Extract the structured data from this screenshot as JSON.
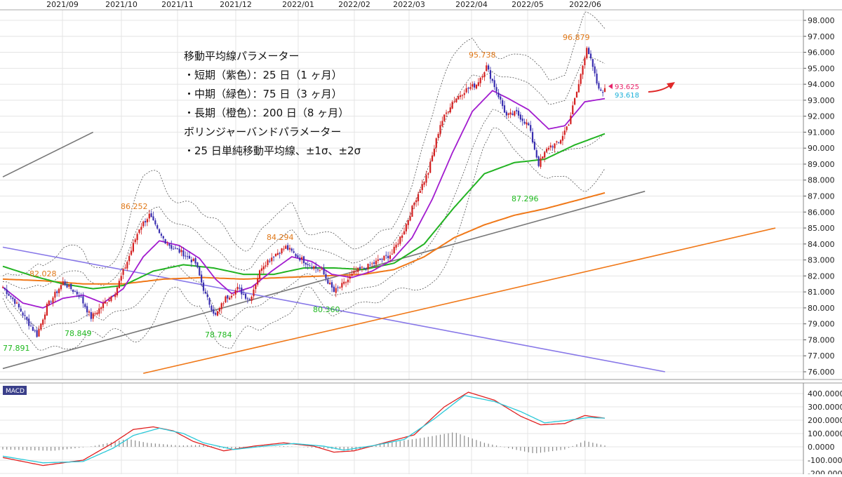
{
  "chart_data": [
    {
      "type": "candlestick",
      "title": "",
      "x_ticks": [
        "2021/09",
        "2021/10",
        "2021/11",
        "2021/12",
        "2022/01",
        "2022/02",
        "2022/03",
        "2022/04",
        "2022/05",
        "2022/06"
      ],
      "y_ticks": [
        "98.000",
        "97.000",
        "96.000",
        "95.000",
        "94.000",
        "93.000",
        "92.000",
        "91.000",
        "90.000",
        "89.000",
        "88.000",
        "87.000",
        "86.000",
        "85.000",
        "84.000",
        "83.000",
        "82.000",
        "81.000",
        "80.000",
        "79.000",
        "78.000",
        "77.000",
        "76.000"
      ],
      "ylim": [
        75.8,
        98.3
      ],
      "grid": true,
      "annotation_lines": [
        "移動平均線パラメーター",
        "・短期（紫色）：25 日（1 ヶ月）",
        "・中期（緑色）：75 日（3 ヶ月）",
        "・長期（橙色）：200 日（8 ヶ月）",
        "ボリンジャーバンドパラメーター",
        "・25 日単純移動平均線、±1σ、±2σ"
      ],
      "high_labels": [
        "82.028",
        "86.252",
        "84.294",
        "95.738",
        "96.879"
      ],
      "low_labels": [
        "77.891",
        "78.849",
        "78.784",
        "80.360",
        "87.296"
      ],
      "price_tags": [
        "93.625",
        "93.618"
      ],
      "colors": {
        "up": "#d42020",
        "down": "#3a2fb0",
        "ma25": "#a21ccf",
        "ma75": "#22b322",
        "ma200": "#f07818",
        "bands": "#555555",
        "high_label": "#e07818",
        "low_label": "#1fb81f",
        "tag_pink": "#e8246a",
        "tag_cyan": "#1ab0d8",
        "trend_black": "#777777",
        "trend_purple": "#8878e8",
        "trend_orange": "#f07818",
        "arrow": "#e02828"
      },
      "anchor_closes": [
        [
          0,
          81.3
        ],
        [
          6,
          80.4
        ],
        [
          12,
          79.2
        ],
        [
          17,
          78.3
        ],
        [
          22,
          80.1
        ],
        [
          30,
          81.6
        ],
        [
          38,
          80.8
        ],
        [
          44,
          79.4
        ],
        [
          50,
          80.2
        ],
        [
          56,
          81.0
        ],
        [
          62,
          82.9
        ],
        [
          68,
          85.0
        ],
        [
          73,
          85.8
        ],
        [
          78,
          84.6
        ],
        [
          84,
          83.8
        ],
        [
          90,
          83.4
        ],
        [
          96,
          82.8
        ],
        [
          101,
          80.8
        ],
        [
          106,
          79.5
        ],
        [
          111,
          80.6
        ],
        [
          117,
          81.2
        ],
        [
          123,
          80.5
        ],
        [
          129,
          82.6
        ],
        [
          135,
          83.3
        ],
        [
          141,
          83.8
        ],
        [
          147,
          83.2
        ],
        [
          153,
          82.7
        ],
        [
          159,
          82.3
        ],
        [
          165,
          81.0
        ],
        [
          170,
          81.5
        ],
        [
          176,
          82.3
        ],
        [
          182,
          82.6
        ],
        [
          188,
          83.0
        ],
        [
          194,
          83.4
        ],
        [
          200,
          84.9
        ],
        [
          206,
          86.9
        ],
        [
          212,
          88.5
        ],
        [
          218,
          91.5
        ],
        [
          224,
          92.9
        ],
        [
          230,
          93.6
        ],
        [
          236,
          94.0
        ],
        [
          241,
          95.1
        ],
        [
          246,
          93.6
        ],
        [
          251,
          92.0
        ],
        [
          256,
          92.2
        ],
        [
          262,
          91.4
        ],
        [
          267,
          89.0
        ],
        [
          272,
          90.1
        ],
        [
          277,
          90.3
        ],
        [
          282,
          91.6
        ],
        [
          287,
          94.0
        ],
        [
          291,
          96.4
        ],
        [
          294,
          95.0
        ],
        [
          297,
          93.6
        ],
        [
          300,
          93.62
        ]
      ],
      "ma25_values": [
        [
          0,
          81.3
        ],
        [
          10,
          80.3
        ],
        [
          20,
          80.0
        ],
        [
          30,
          80.6
        ],
        [
          40,
          80.8
        ],
        [
          50,
          80.3
        ],
        [
          60,
          81.2
        ],
        [
          70,
          83.2
        ],
        [
          78,
          84.2
        ],
        [
          88,
          83.9
        ],
        [
          98,
          83.1
        ],
        [
          106,
          81.8
        ],
        [
          114,
          80.9
        ],
        [
          124,
          81.3
        ],
        [
          134,
          82.3
        ],
        [
          144,
          83.2
        ],
        [
          154,
          82.9
        ],
        [
          164,
          82.1
        ],
        [
          174,
          81.9
        ],
        [
          184,
          82.3
        ],
        [
          194,
          83.0
        ],
        [
          204,
          84.4
        ],
        [
          214,
          86.8
        ],
        [
          224,
          89.7
        ],
        [
          234,
          92.3
        ],
        [
          244,
          93.6
        ],
        [
          252,
          93.1
        ],
        [
          262,
          92.4
        ],
        [
          272,
          91.2
        ],
        [
          280,
          91.4
        ],
        [
          290,
          92.9
        ],
        [
          300,
          93.1
        ]
      ],
      "ma75_values": [
        [
          0,
          82.6
        ],
        [
          15,
          82.0
        ],
        [
          30,
          81.5
        ],
        [
          45,
          81.2
        ],
        [
          60,
          81.4
        ],
        [
          75,
          82.3
        ],
        [
          90,
          82.7
        ],
        [
          105,
          82.5
        ],
        [
          120,
          82.1
        ],
        [
          135,
          82.1
        ],
        [
          150,
          82.5
        ],
        [
          165,
          82.5
        ],
        [
          180,
          82.4
        ],
        [
          195,
          82.8
        ],
        [
          210,
          84.0
        ],
        [
          225,
          86.3
        ],
        [
          240,
          88.4
        ],
        [
          255,
          89.1
        ],
        [
          270,
          89.3
        ],
        [
          285,
          90.2
        ],
        [
          300,
          90.9
        ]
      ],
      "ma200_values": [
        [
          0,
          81.8
        ],
        [
          20,
          81.7
        ],
        [
          40,
          81.5
        ],
        [
          60,
          81.5
        ],
        [
          80,
          81.8
        ],
        [
          100,
          81.9
        ],
        [
          120,
          81.8
        ],
        [
          140,
          81.9
        ],
        [
          160,
          82.0
        ],
        [
          180,
          82.1
        ],
        [
          195,
          82.4
        ],
        [
          210,
          83.2
        ],
        [
          225,
          84.4
        ],
        [
          240,
          85.2
        ],
        [
          255,
          85.8
        ],
        [
          270,
          86.2
        ],
        [
          285,
          86.7
        ],
        [
          300,
          87.2
        ]
      ],
      "trend_lines": [
        {
          "name": "black-upper-left",
          "points": [
            [
              0,
              88.2
            ],
            [
              45,
              91.0
            ]
          ]
        },
        {
          "name": "black-rising",
          "points": [
            [
              0,
              76.2
            ],
            [
              320,
              87.3
            ]
          ]
        },
        {
          "name": "purple-falling",
          "points": [
            [
              0,
              83.8
            ],
            [
              330,
              76.0
            ]
          ]
        },
        {
          "name": "orange-rising",
          "points": [
            [
              70,
              75.9
            ],
            [
              385,
              85.0
            ]
          ]
        }
      ]
    },
    {
      "type": "line",
      "title": "MACD",
      "legend_label": "MACD",
      "y_ticks": [
        "400.0000",
        "300.0000",
        "200.0000",
        "100.0000",
        "0.0000",
        "-100.0000",
        "-200.0000"
      ],
      "ylim": [
        -200,
        470
      ],
      "series": [
        {
          "name": "MACD",
          "color": "#e02020",
          "anchors": [
            [
              0,
              -80
            ],
            [
              20,
              -140
            ],
            [
              40,
              -100
            ],
            [
              55,
              30
            ],
            [
              65,
              130
            ],
            [
              75,
              150
            ],
            [
              85,
              120
            ],
            [
              95,
              40
            ],
            [
              110,
              -30
            ],
            [
              125,
              5
            ],
            [
              140,
              30
            ],
            [
              155,
              5
            ],
            [
              165,
              -40
            ],
            [
              175,
              -30
            ],
            [
              190,
              30
            ],
            [
              205,
              90
            ],
            [
              220,
              300
            ],
            [
              232,
              410
            ],
            [
              245,
              350
            ],
            [
              258,
              230
            ],
            [
              268,
              165
            ],
            [
              280,
              175
            ],
            [
              290,
              235
            ],
            [
              300,
              215
            ]
          ]
        },
        {
          "name": "Signal",
          "color": "#2ac8d8",
          "anchors": [
            [
              0,
              -70
            ],
            [
              20,
              -120
            ],
            [
              40,
              -110
            ],
            [
              55,
              -10
            ],
            [
              65,
              85
            ],
            [
              78,
              140
            ],
            [
              90,
              100
            ],
            [
              100,
              30
            ],
            [
              115,
              -20
            ],
            [
              130,
              5
            ],
            [
              145,
              25
            ],
            [
              160,
              5
            ],
            [
              170,
              -25
            ],
            [
              185,
              10
            ],
            [
              200,
              55
            ],
            [
              215,
              210
            ],
            [
              230,
              385
            ],
            [
              245,
              340
            ],
            [
              258,
              265
            ],
            [
              270,
              180
            ],
            [
              282,
              200
            ],
            [
              292,
              220
            ],
            [
              300,
              215
            ]
          ]
        }
      ],
      "histogram_anchors": [
        [
          0,
          -20
        ],
        [
          25,
          -30
        ],
        [
          45,
          5
        ],
        [
          62,
          60
        ],
        [
          72,
          30
        ],
        [
          88,
          10
        ],
        [
          100,
          15
        ],
        [
          112,
          -15
        ],
        [
          125,
          -5
        ],
        [
          140,
          5
        ],
        [
          160,
          -10
        ],
        [
          175,
          -30
        ],
        [
          190,
          25
        ],
        [
          210,
          70
        ],
        [
          225,
          110
        ],
        [
          240,
          30
        ],
        [
          255,
          -20
        ],
        [
          265,
          -50
        ],
        [
          280,
          -20
        ],
        [
          290,
          45
        ],
        [
          300,
          10
        ]
      ]
    }
  ]
}
